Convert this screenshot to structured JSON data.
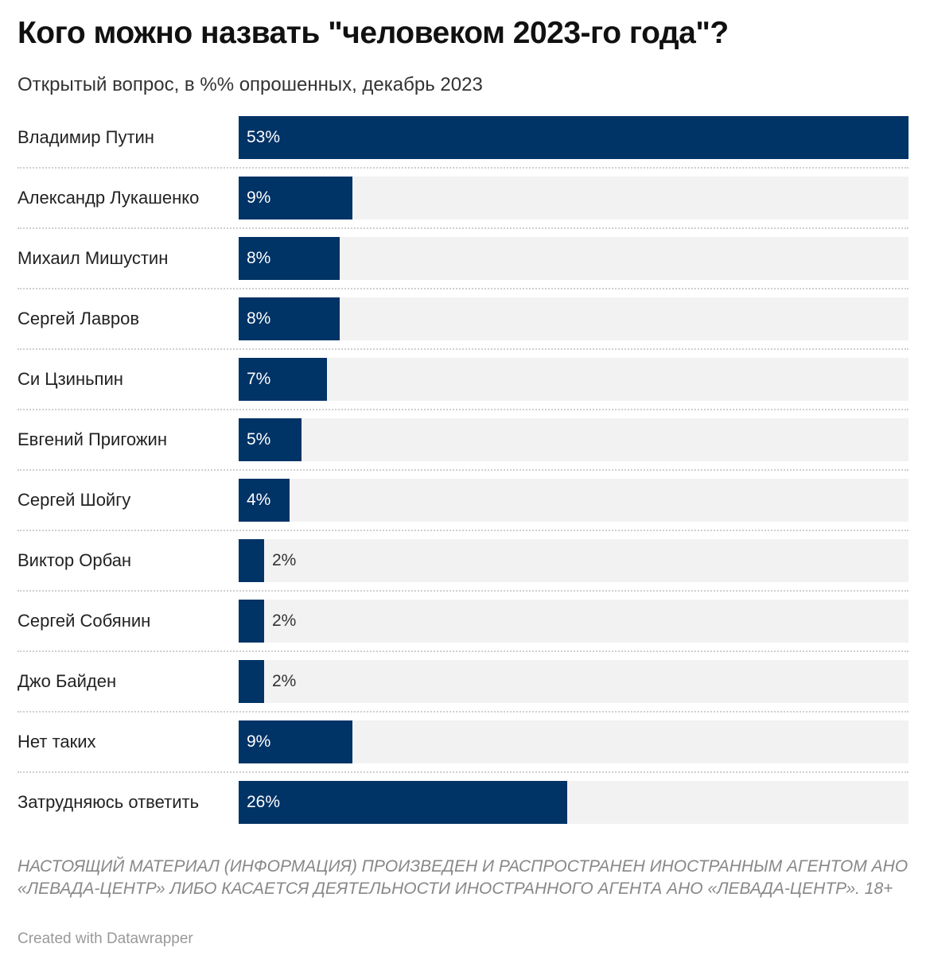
{
  "header": {
    "title": "Кого можно назвать \"человеком 2023-го года\"?",
    "subtitle": "Открытый вопрос, в %% опрошенных, декабрь 2023"
  },
  "chart_data": {
    "type": "bar",
    "orientation": "horizontal",
    "title": "Кого можно назвать \"человеком 2023-го года\"?",
    "subtitle": "Открытый вопрос, в %% опрошенных, декабрь 2023",
    "categories": [
      "Владимир Путин",
      "Александр Лукашенко",
      "Михаил Мишустин",
      "Сергей Лавров",
      "Си Цзиньпин",
      "Евгений Пригожин",
      "Сергей Шойгу",
      "Виктор Орбан",
      "Сергей Собянин",
      "Джо Байден",
      "Нет таких",
      "Затрудняюсь ответить"
    ],
    "values": [
      53,
      9,
      8,
      8,
      7,
      5,
      4,
      2,
      2,
      2,
      9,
      26
    ],
    "value_labels": [
      "53%",
      "9%",
      "8%",
      "8%",
      "7%",
      "5%",
      "4%",
      "2%",
      "2%",
      "2%",
      "9%",
      "26%"
    ],
    "xlim": [
      0,
      53
    ],
    "bar_color": "#003366",
    "track_color": "#f2f2f2",
    "grid": false
  },
  "footer": {
    "notes": "НАСТОЯЩИЙ МАТЕРИАЛ (ИНФОРМАЦИЯ) ПРОИЗВЕДЕН И РАСПРОСТРАНЕН ИНОСТРАННЫМ АГЕНТОМ АНО «ЛЕВАДА-ЦЕНТР» ЛИБО КАСАЕТСЯ ДЕЯТЕЛЬНОСТИ ИНОСТРАННОГО АГЕНТА АНО «ЛЕВАДА-ЦЕНТР». 18+",
    "credit": "Created with Datawrapper"
  }
}
